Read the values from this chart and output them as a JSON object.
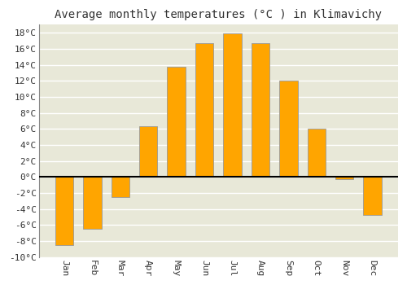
{
  "title": "Average monthly temperatures (°C ) in Klimavichy",
  "months": [
    "Jan",
    "Feb",
    "Mar",
    "Apr",
    "May",
    "Jun",
    "Jul",
    "Aug",
    "Sep",
    "Oct",
    "Nov",
    "Dec"
  ],
  "temperatures": [
    -8.5,
    -6.5,
    -2.5,
    6.3,
    13.8,
    16.7,
    17.9,
    16.7,
    12.0,
    6.0,
    -0.3,
    -4.7
  ],
  "bar_color": "#FFA500",
  "bar_edge_color": "#999999",
  "ylim": [
    -10,
    19
  ],
  "yticks": [
    -10,
    -8,
    -6,
    -4,
    -2,
    0,
    2,
    4,
    6,
    8,
    10,
    12,
    14,
    16,
    18
  ],
  "ytick_labels": [
    "-10°C",
    "-8°C",
    "-6°C",
    "-4°C",
    "-2°C",
    "0°C",
    "2°C",
    "4°C",
    "6°C",
    "8°C",
    "10°C",
    "12°C",
    "14°C",
    "16°C",
    "18°C"
  ],
  "plot_bg_color": "#e8e8d8",
  "figure_bg_color": "#ffffff",
  "grid_color": "#ffffff",
  "zero_line_color": "#000000",
  "title_fontsize": 10,
  "tick_fontsize": 8,
  "bar_width": 0.65
}
